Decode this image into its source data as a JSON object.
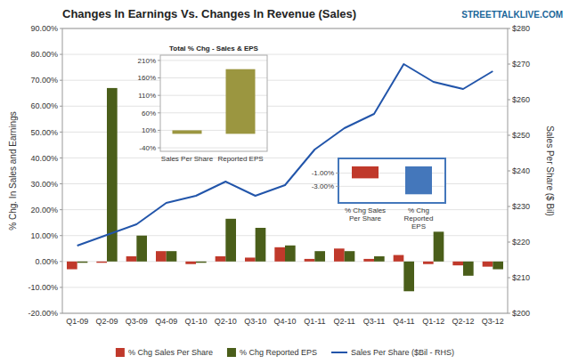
{
  "chart_data": [
    {
      "type": "bar",
      "title": "Changes In Earnings Vs. Changes In Revenue (Sales)",
      "annotations": [
        "STREETTALKLIVE.COM"
      ],
      "categories": [
        "Q1-09",
        "Q2-09",
        "Q3-09",
        "Q4-09",
        "Q1-10",
        "Q2-10",
        "Q3-10",
        "Q4-10",
        "Q1-11",
        "Q2-11",
        "Q3-11",
        "Q4-11",
        "Q1-12",
        "Q2-12",
        "Q3-12"
      ],
      "series": [
        {
          "name": "% Chg Sales Per Share",
          "color": "#c0392b",
          "values": [
            -0.03,
            -0.005,
            0.02,
            0.04,
            -0.01,
            0.02,
            0.015,
            0.055,
            0.01,
            0.05,
            0.01,
            0.025,
            -0.01,
            -0.015,
            -0.02
          ]
        },
        {
          "name": "% Chg Reported EPS",
          "color": "#4a5e1a",
          "values": [
            -0.005,
            0.67,
            0.1,
            0.04,
            -0.005,
            0.165,
            0.13,
            0.062,
            0.04,
            0.04,
            0.02,
            -0.115,
            0.115,
            -0.055,
            -0.03
          ]
        },
        {
          "name": "Sales Per Share ($Bil - RHS)",
          "type": "line",
          "axis": "y2",
          "color": "#2255aa",
          "values": [
            219,
            222,
            225,
            231,
            233,
            237,
            233,
            236,
            246,
            252,
            256,
            270,
            265,
            263,
            268
          ]
        }
      ],
      "ylabel": "% Chg. In Sales and Earnings",
      "y2label": "Sales Per Share ($ Bil)",
      "ylim": [
        -0.2,
        0.9
      ],
      "yticks": [
        {
          "value": -0.2,
          "label": "-20.00%"
        },
        {
          "value": -0.1,
          "label": "-10.00%"
        },
        {
          "value": 0.0,
          "label": "0.00%"
        },
        {
          "value": 0.1,
          "label": "10.00%"
        },
        {
          "value": 0.2,
          "label": "20.00%"
        },
        {
          "value": 0.3,
          "label": "30.00%"
        },
        {
          "value": 0.4,
          "label": "40.00%"
        },
        {
          "value": 0.5,
          "label": "50.00%"
        },
        {
          "value": 0.6,
          "label": "60.00%"
        },
        {
          "value": 0.7,
          "label": "70.00%"
        },
        {
          "value": 0.8,
          "label": "80.00%"
        },
        {
          "value": 0.9,
          "label": "90.00%"
        }
      ],
      "y2lim": [
        200,
        280
      ],
      "y2ticks": [
        {
          "value": 200,
          "label": "$200"
        },
        {
          "value": 210,
          "label": "$210"
        },
        {
          "value": 220,
          "label": "$220"
        },
        {
          "value": 230,
          "label": "$230"
        },
        {
          "value": 240,
          "label": "$240"
        },
        {
          "value": 250,
          "label": "$250"
        },
        {
          "value": 260,
          "label": "$260"
        },
        {
          "value": 270,
          "label": "$270"
        },
        {
          "value": 280,
          "label": "$280"
        }
      ],
      "grid": true,
      "legend": "bottom"
    },
    {
      "type": "bar",
      "title": "Total % Chg - Sales & EPS",
      "categories": [
        "Sales Per Share",
        "Reported EPS"
      ],
      "values": [
        0.1,
        1.85
      ],
      "color": "#9b9640",
      "ylim": [
        -0.5,
        2.25
      ],
      "yticks": [
        {
          "value": -0.4,
          "label": "-40%"
        },
        {
          "value": 0.1,
          "label": "10%"
        },
        {
          "value": 0.6,
          "label": "60%"
        },
        {
          "value": 1.1,
          "label": "110%"
        },
        {
          "value": 1.6,
          "label": "160%"
        },
        {
          "value": 2.1,
          "label": "210%"
        }
      ],
      "grid": true
    },
    {
      "type": "bar",
      "categories": [
        "% Chg Sales\nPer Share",
        "% Chg\nReported\nEPS"
      ],
      "values": [
        -0.018,
        -0.042
      ],
      "colors": [
        "#c0392b",
        "#4477bb"
      ],
      "ylim": [
        -0.055,
        0.012
      ],
      "yticks": [
        {
          "value": -0.03,
          "label": "-3.00%"
        },
        {
          "value": -0.01,
          "label": "-1.00%"
        }
      ],
      "grid": true
    }
  ]
}
